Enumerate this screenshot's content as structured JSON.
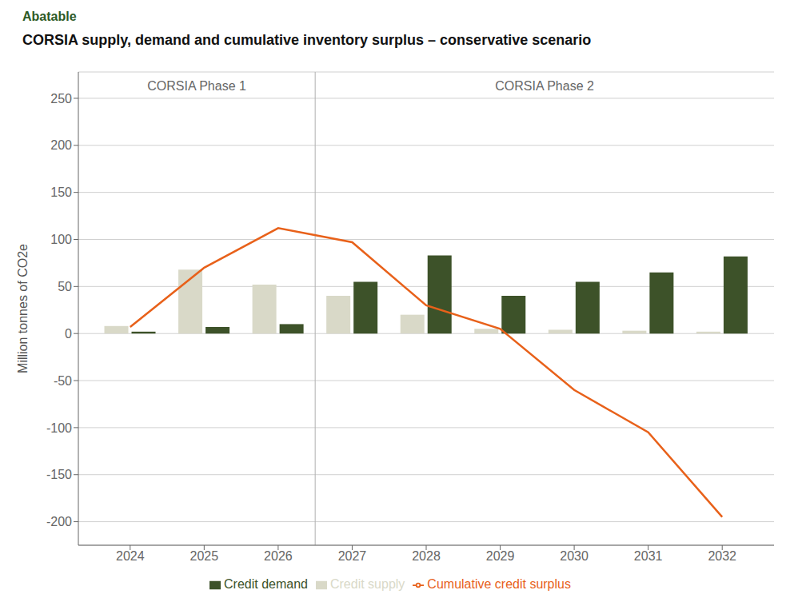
{
  "chart_data": {
    "type": "bar",
    "title": "CORSIA supply, demand and cumulative inventory surplus – conservative scenario",
    "logo": "Abatable",
    "x": [
      2024,
      2025,
      2026,
      2027,
      2028,
      2029,
      2030,
      2031,
      2032
    ],
    "series": [
      {
        "name": "Credit supply",
        "color": "#d9d9c8",
        "type": "bar",
        "values": [
          8,
          68,
          52,
          40,
          20,
          5,
          4,
          3,
          2
        ]
      },
      {
        "name": "Credit demand",
        "color": "#3d5229",
        "type": "bar",
        "values": [
          2,
          7,
          10,
          55,
          83,
          40,
          55,
          65,
          82
        ]
      },
      {
        "name": "Cumulative credit surplus",
        "color": "#e8611a",
        "type": "line",
        "values": [
          7,
          70,
          112,
          97,
          30,
          5,
          -60,
          -105,
          -195
        ]
      }
    ],
    "ylabel": "Million tonnes of CO2e",
    "xlim": [
      2023.3,
      2032.7
    ],
    "xticks": [
      2024,
      2025,
      2026,
      2027,
      2028,
      2029,
      2030,
      2031,
      2032
    ],
    "ylim": [
      -225,
      278
    ],
    "yticks": [
      -200,
      -150,
      -100,
      -50,
      0,
      50,
      100,
      150,
      200,
      250
    ],
    "grid": true,
    "legend": "bottom",
    "phase_split": 2026.5,
    "annotations": [
      "CORSIA Phase 1",
      "CORSIA Phase 2"
    ]
  }
}
